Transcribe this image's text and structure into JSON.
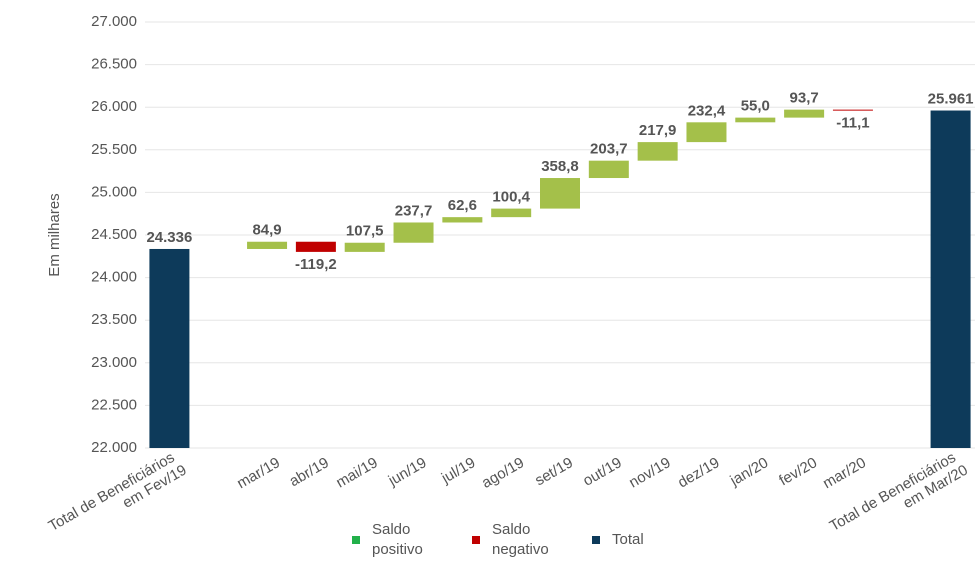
{
  "chart_data": {
    "type": "waterfall",
    "y_label": "Em milhares",
    "categories": [
      "Total de Beneficiários\nem  Fev/19",
      null,
      "mar/19",
      "abr/19",
      "mai/19",
      "jun/19",
      "jul/19",
      "ago/19",
      "set/19",
      "out/19",
      "nov/19",
      "dez/19",
      "jan/20",
      "fev/20",
      "mar/20",
      null,
      "Total de Beneficiários\nem Mar/20"
    ],
    "measure": [
      "total",
      null,
      "relative",
      "relative",
      "relative",
      "relative",
      "relative",
      "relative",
      "relative",
      "relative",
      "relative",
      "relative",
      "relative",
      "relative",
      "relative",
      null,
      "total"
    ],
    "values": [
      24336,
      null,
      84.9,
      -119.2,
      107.5,
      237.7,
      62.6,
      100.4,
      358.8,
      203.7,
      217.9,
      232.4,
      55.0,
      93.7,
      -11.1,
      null,
      25961
    ],
    "value_labels": [
      "24.336",
      null,
      "84,9",
      "-119,2",
      "107,5",
      "237,7",
      "62,6",
      "100,4",
      "358,8",
      "203,7",
      "217,9",
      "232,4",
      "55,0",
      "93,7",
      "-11,1",
      null,
      "25.961"
    ],
    "colors": {
      "positive": "#a4c04a",
      "negative": "#c00000",
      "total": "#0d3a5a"
    },
    "legend": [
      {
        "name": "Saldo\npositivo",
        "color": "#22b04a"
      },
      {
        "name": "Saldo\nnegativo",
        "color": "#c00000"
      },
      {
        "name": "Total",
        "color": "#0d3a5a"
      }
    ],
    "ylim": [
      22000,
      27000
    ],
    "yticks": [
      {
        "value": 22000,
        "label": "22.000"
      },
      {
        "value": 22500,
        "label": "22.500"
      },
      {
        "value": 23000,
        "label": "23.000"
      },
      {
        "value": 23500,
        "label": "23.500"
      },
      {
        "value": 24000,
        "label": "24.000"
      },
      {
        "value": 24500,
        "label": "24.500"
      },
      {
        "value": 25000,
        "label": "25.000"
      },
      {
        "value": 25500,
        "label": "25.500"
      },
      {
        "value": 26000,
        "label": "26.000"
      },
      {
        "value": 26500,
        "label": "26.500"
      },
      {
        "value": 27000,
        "label": "27.000"
      }
    ],
    "grid": true
  }
}
